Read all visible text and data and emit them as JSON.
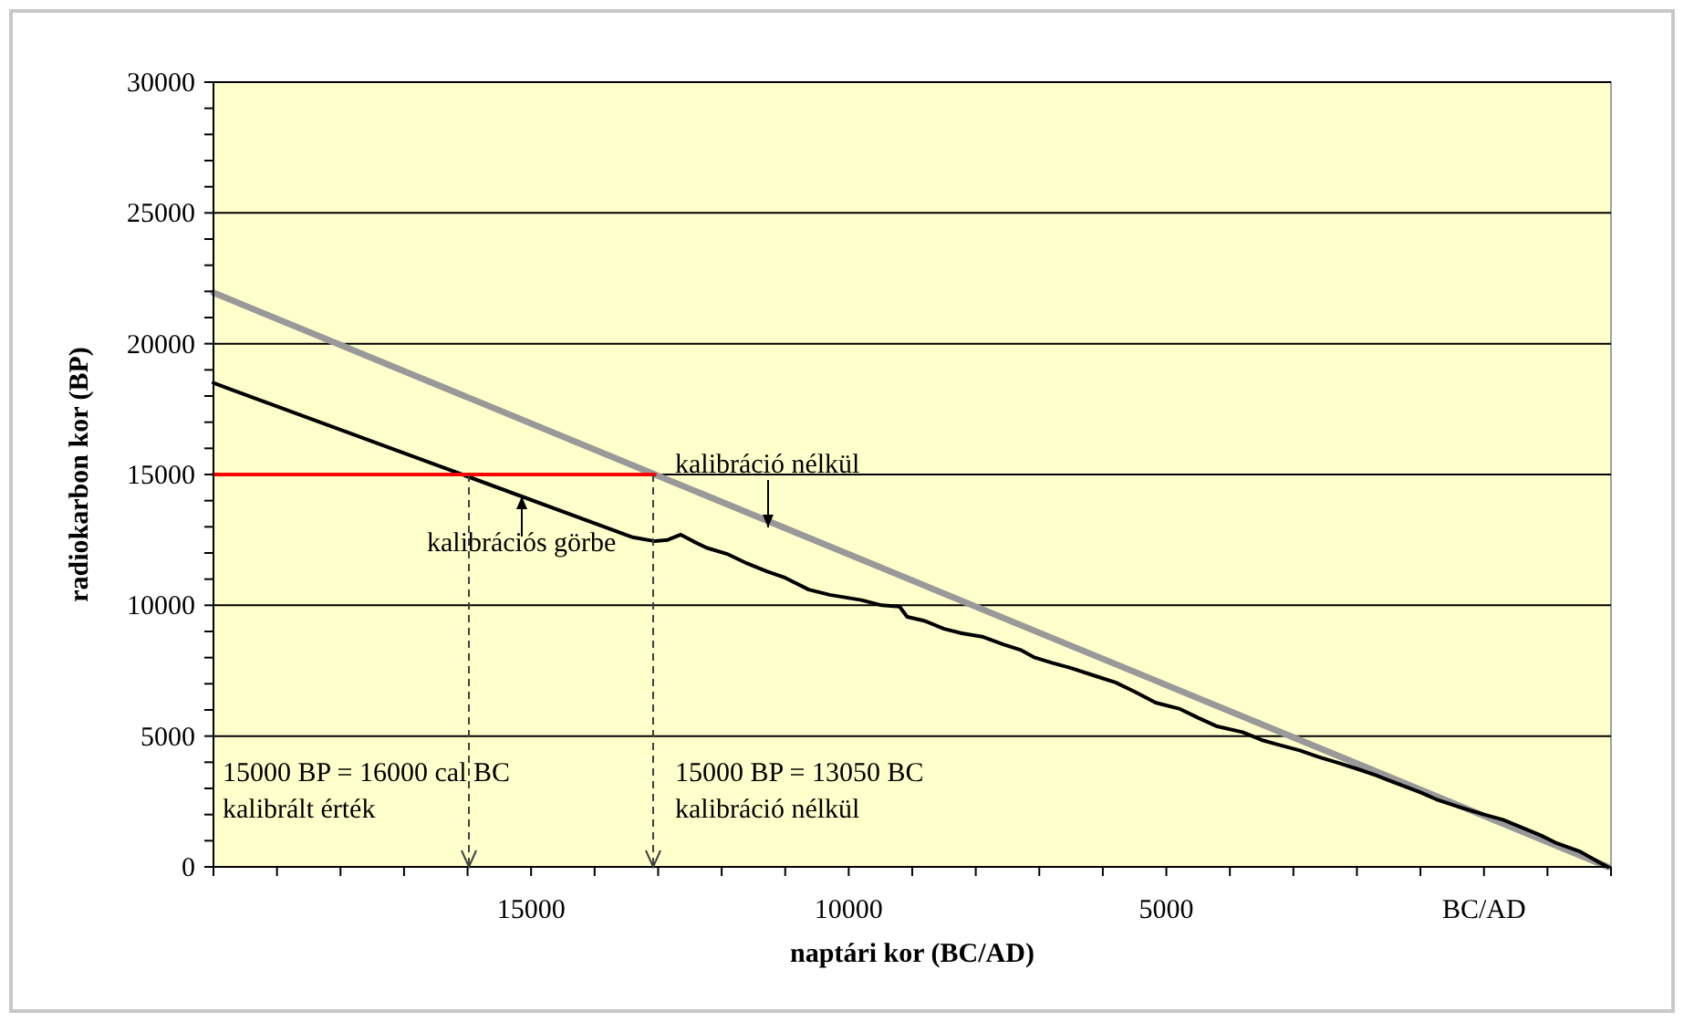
{
  "chart_data": {
    "type": "line",
    "xlabel": "naptári kor (BC/AD)",
    "ylabel": "radiokarbon kor (BP)",
    "xlim": [
      -20000,
      2000
    ],
    "ylim": [
      0,
      30000
    ],
    "xticks": [
      {
        "value": -20000,
        "label": null
      },
      {
        "value": -19000,
        "label": null
      },
      {
        "value": -18000,
        "label": null
      },
      {
        "value": -17000,
        "label": null
      },
      {
        "value": -16000,
        "label": null
      },
      {
        "value": -15000,
        "label": "15000"
      },
      {
        "value": -14000,
        "label": null
      },
      {
        "value": -13000,
        "label": null
      },
      {
        "value": -12000,
        "label": null
      },
      {
        "value": -11000,
        "label": null
      },
      {
        "value": -10000,
        "label": "10000"
      },
      {
        "value": -9000,
        "label": null
      },
      {
        "value": -8000,
        "label": null
      },
      {
        "value": -7000,
        "label": null
      },
      {
        "value": -6000,
        "label": null
      },
      {
        "value": -5000,
        "label": "5000"
      },
      {
        "value": -4000,
        "label": null
      },
      {
        "value": -3000,
        "label": null
      },
      {
        "value": -2000,
        "label": null
      },
      {
        "value": -1000,
        "label": null
      },
      {
        "value": 0,
        "label": "BC/AD"
      },
      {
        "value": 1000,
        "label": null
      },
      {
        "value": 2000,
        "label": null
      }
    ],
    "yticks": [
      0,
      {
        "value": 1000,
        "label": null
      },
      {
        "value": 2000,
        "label": null
      },
      {
        "value": 3000,
        "label": null
      },
      {
        "value": 4000,
        "label": null
      },
      5000,
      {
        "value": 6000,
        "label": null
      },
      {
        "value": 7000,
        "label": null
      },
      {
        "value": 8000,
        "label": null
      },
      {
        "value": 9000,
        "label": null
      },
      10000,
      {
        "value": 11000,
        "label": null
      },
      {
        "value": 12000,
        "label": null
      },
      {
        "value": 13000,
        "label": null
      },
      {
        "value": 14000,
        "label": null
      },
      15000,
      {
        "value": 16000,
        "label": null
      },
      {
        "value": 17000,
        "label": null
      },
      {
        "value": 18000,
        "label": null
      },
      {
        "value": 19000,
        "label": null
      },
      20000,
      {
        "value": 21000,
        "label": null
      },
      {
        "value": 22000,
        "label": null
      },
      {
        "value": 23000,
        "label": null
      },
      {
        "value": 24000,
        "label": null
      },
      25000,
      {
        "value": 26000,
        "label": null
      },
      {
        "value": 27000,
        "label": null
      },
      {
        "value": 28000,
        "label": null
      },
      {
        "value": 29000,
        "label": null
      },
      30000
    ],
    "grid": "y",
    "marker": "none",
    "series": [
      {
        "color": "#999999",
        "x": [
          -20000,
          1950
        ],
        "values": [
          21950,
          0
        ]
      },
      {
        "color": "#000000",
        "x": [
          -20000,
          -13400,
          -13050,
          -12850,
          -12644,
          -12450,
          -12240,
          -11900,
          -11600,
          -11290,
          -11000,
          -10630,
          -10300,
          -9800,
          -9480,
          -9200,
          -9080,
          -8800,
          -8500,
          -8220,
          -7900,
          -7560,
          -7300,
          -7070,
          -6800,
          -6500,
          -6120,
          -5800,
          -5500,
          -5170,
          -4800,
          -4500,
          -4200,
          -3800,
          -3500,
          -3250,
          -2900,
          -2600,
          -2300,
          -2000,
          -1700,
          -1320,
          -1000,
          -750,
          -400,
          0,
          300,
          570,
          900,
          1150,
          1500,
          1840,
          1950
        ],
        "values": [
          18500,
          12600,
          12450,
          12500,
          12700,
          12450,
          12200,
          11950,
          11600,
          11300,
          11050,
          10600,
          10400,
          10200,
          10000,
          9950,
          9560,
          9400,
          9100,
          8930,
          8800,
          8500,
          8300,
          8000,
          7800,
          7600,
          7300,
          7050,
          6700,
          6280,
          6050,
          5700,
          5370,
          5150,
          4850,
          4680,
          4450,
          4200,
          3980,
          3750,
          3500,
          3140,
          2850,
          2580,
          2300,
          2000,
          1800,
          1530,
          1200,
          900,
          600,
          140,
          0
        ]
      },
      {
        "color": "#ff0000",
        "x": [
          -20000,
          -13050
        ],
        "values": [
          15000,
          15000
        ]
      }
    ],
    "annotations": [
      "kalibrációs görbe",
      "kalibráció nélkül",
      "15000 BP = 16000 cal BC\nkalibrált érték",
      "15000 BP = 13050 BC\nkalibráció nélkül"
    ]
  }
}
